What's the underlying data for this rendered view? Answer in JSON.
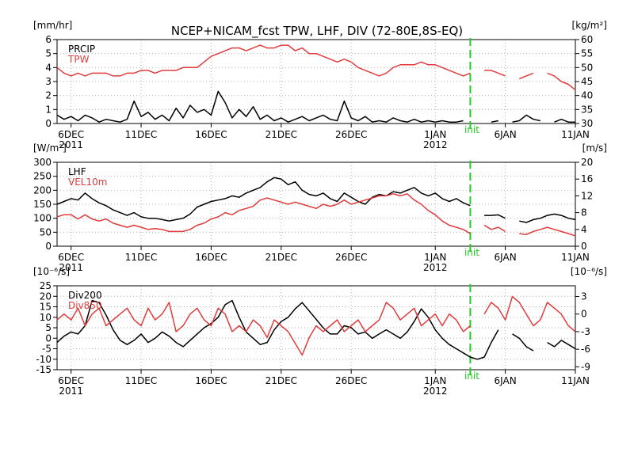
{
  "title": "NCEP+NICAM_fcst TPW, LHF, DIV (72-80E,8S-EQ)",
  "colors": {
    "black": "#000000",
    "red": "#e03c3c",
    "init": "#22cc22",
    "grid": "#b0b0b0"
  },
  "x_ticks": [
    "6DEC",
    "11DEC",
    "16DEC",
    "21DEC",
    "26DEC",
    "1JAN",
    "6JAN",
    "11JAN"
  ],
  "x_tick_days": [
    0,
    5,
    10,
    15,
    20,
    26,
    31,
    36
  ],
  "year_labels": [
    {
      "text": "2011",
      "day": 0
    },
    {
      "text": "2012",
      "day": 26
    }
  ],
  "init_label": "init",
  "chart_data": [
    {
      "type": "line",
      "panel": "precip_tpw",
      "left_unit": "[mm/hr]",
      "right_unit": "[kg/m²]",
      "left_ylim": [
        0,
        6
      ],
      "right_ylim": [
        30,
        60
      ],
      "left_ticks": [
        "0",
        "1",
        "2",
        "3",
        "4",
        "5",
        "6"
      ],
      "right_ticks": [
        "30",
        "35",
        "40",
        "45",
        "50",
        "55",
        "60"
      ],
      "xlim": [
        -1,
        36
      ],
      "init_day": 28.5,
      "grid": true,
      "series": [
        {
          "name": "PRCIP",
          "axis": "left",
          "color": "#000000",
          "x": [
            -1,
            -0.5,
            0,
            0.5,
            1,
            1.5,
            2,
            2.5,
            3,
            3.5,
            4,
            4.5,
            5,
            5.5,
            6,
            6.5,
            7,
            7.5,
            8,
            8.5,
            9,
            9.5,
            10,
            10.5,
            11,
            11.5,
            12,
            12.5,
            13,
            13.5,
            14,
            14.5,
            15,
            15.5,
            16,
            16.5,
            17,
            17.5,
            18,
            18.5,
            19,
            19.5,
            20,
            20.5,
            21,
            21.5,
            22,
            22.5,
            23,
            23.5,
            24,
            24.5,
            25,
            25.5,
            26,
            26.5,
            27,
            27.5,
            28,
            28.5,
            29,
            29.5,
            30,
            30.5,
            31,
            31.5,
            32,
            32.5,
            33,
            33.5,
            34,
            34.5,
            35,
            35.5,
            36
          ],
          "values": [
            0.6,
            0.3,
            0.5,
            0.2,
            0.6,
            0.4,
            0.1,
            0.3,
            0.2,
            0.1,
            0.3,
            1.6,
            0.5,
            0.8,
            0.3,
            0.6,
            0.2,
            1.1,
            0.4,
            1.3,
            0.8,
            1.0,
            0.6,
            2.3,
            1.5,
            0.4,
            1.0,
            0.5,
            1.2,
            0.3,
            0.6,
            0.2,
            0.4,
            0.1,
            0.3,
            0.5,
            0.2,
            0.4,
            0.6,
            0.3,
            0.2,
            1.6,
            0.4,
            0.2,
            0.5,
            0.1,
            0.2,
            0.1,
            0.4,
            0.2,
            0.1,
            0.3,
            0.1,
            0.2,
            0.1,
            0.2,
            0.1,
            0.1,
            0.2,
            null,
            0.9,
            null,
            0.1,
            0.2,
            null,
            0.1,
            0.2,
            0.6,
            0.3,
            0.2,
            null,
            0.1,
            0.3,
            0.1,
            0.1
          ]
        },
        {
          "name": "TPW",
          "axis": "right",
          "color": "#e03c3c",
          "x": [
            -1,
            -0.5,
            0,
            0.5,
            1,
            1.5,
            2,
            2.5,
            3,
            3.5,
            4,
            4.5,
            5,
            5.5,
            6,
            6.5,
            7,
            7.5,
            8,
            8.5,
            9,
            9.5,
            10,
            10.5,
            11,
            11.5,
            12,
            12.5,
            13,
            13.5,
            14,
            14.5,
            15,
            15.5,
            16,
            16.5,
            17,
            17.5,
            18,
            18.5,
            19,
            19.5,
            20,
            20.5,
            21,
            21.5,
            22,
            22.5,
            23,
            23.5,
            24,
            24.5,
            25,
            25.5,
            26,
            26.5,
            27,
            27.5,
            28,
            28.5,
            29,
            29.5,
            30,
            30.5,
            31,
            31.5,
            32,
            32.5,
            33,
            33.5,
            34,
            34.5,
            35,
            35.5,
            36
          ],
          "values": [
            50,
            48,
            47,
            48,
            47,
            48,
            48,
            48,
            47,
            47,
            48,
            48,
            49,
            49,
            48,
            49,
            49,
            49,
            50,
            50,
            50,
            52,
            54,
            55,
            56,
            57,
            57,
            56,
            57,
            58,
            57,
            57,
            58,
            58,
            56,
            57,
            55,
            55,
            54,
            53,
            52,
            53,
            52,
            50,
            49,
            48,
            47,
            48,
            50,
            51,
            51,
            51,
            52,
            51,
            51,
            50,
            49,
            48,
            47,
            48,
            null,
            49,
            49,
            48,
            47,
            null,
            46,
            47,
            48,
            null,
            48,
            47,
            45,
            44,
            42
          ]
        }
      ]
    },
    {
      "type": "line",
      "panel": "lhf_vel10m",
      "left_unit": "[W/m²]",
      "right_unit": "[m/s]",
      "left_ylim": [
        0,
        300
      ],
      "right_ylim": [
        0,
        20
      ],
      "left_ticks": [
        "0",
        "50",
        "100",
        "150",
        "200",
        "250",
        "300"
      ],
      "right_ticks": [
        "0",
        "4",
        "8",
        "12",
        "16",
        "20"
      ],
      "xlim": [
        -1,
        36
      ],
      "init_day": 28.5,
      "grid": true,
      "series": [
        {
          "name": "LHF",
          "axis": "left",
          "color": "#000000",
          "x": [
            -1,
            -0.5,
            0,
            0.5,
            1,
            1.5,
            2,
            2.5,
            3,
            3.5,
            4,
            4.5,
            5,
            5.5,
            6,
            6.5,
            7,
            7.5,
            8,
            8.5,
            9,
            9.5,
            10,
            10.5,
            11,
            11.5,
            12,
            12.5,
            13,
            13.5,
            14,
            14.5,
            15,
            15.5,
            16,
            16.5,
            17,
            17.5,
            18,
            18.5,
            19,
            19.5,
            20,
            20.5,
            21,
            21.5,
            22,
            22.5,
            23,
            23.5,
            24,
            24.5,
            25,
            25.5,
            26,
            26.5,
            27,
            27.5,
            28,
            28.5,
            29,
            29.5,
            30,
            30.5,
            31,
            31.5,
            32,
            32.5,
            33,
            33.5,
            34,
            34.5,
            35,
            35.5,
            36
          ],
          "values": [
            150,
            160,
            170,
            165,
            190,
            170,
            155,
            145,
            130,
            120,
            110,
            120,
            105,
            100,
            100,
            95,
            90,
            95,
            100,
            115,
            140,
            150,
            160,
            165,
            170,
            180,
            175,
            190,
            200,
            210,
            230,
            245,
            240,
            220,
            230,
            200,
            185,
            180,
            190,
            170,
            160,
            190,
            175,
            160,
            150,
            175,
            185,
            180,
            195,
            190,
            200,
            210,
            190,
            180,
            190,
            170,
            160,
            170,
            155,
            145,
            null,
            110,
            110,
            112,
            100,
            null,
            90,
            85,
            95,
            100,
            110,
            115,
            110,
            100,
            95
          ]
        },
        {
          "name": "VEL10m",
          "axis": "right",
          "color": "#e03c3c",
          "x": [
            -1,
            -0.5,
            0,
            0.5,
            1,
            1.5,
            2,
            2.5,
            3,
            3.5,
            4,
            4.5,
            5,
            5.5,
            6,
            6.5,
            7,
            7.5,
            8,
            8.5,
            9,
            9.5,
            10,
            10.5,
            11,
            11.5,
            12,
            12.5,
            13,
            13.5,
            14,
            14.5,
            15,
            15.5,
            16,
            16.5,
            17,
            17.5,
            18,
            18.5,
            19,
            19.5,
            20,
            20.5,
            21,
            21.5,
            22,
            22.5,
            23,
            23.5,
            24,
            24.5,
            25,
            25.5,
            26,
            26.5,
            27,
            27.5,
            28,
            28.5,
            29,
            29.5,
            30,
            30.5,
            31,
            31.5,
            32,
            32.5,
            33,
            33.5,
            34,
            34.5,
            35,
            35.5,
            36
          ],
          "values": [
            7,
            7.5,
            7.5,
            6.5,
            7.5,
            6.5,
            6,
            6.5,
            5.5,
            5,
            4.5,
            5,
            4.5,
            4,
            4.2,
            4,
            3.5,
            3.5,
            3.5,
            4,
            5,
            5.5,
            6.5,
            7,
            8,
            7.5,
            8.5,
            9,
            9.5,
            11,
            11.5,
            11,
            10.5,
            10,
            10.5,
            10,
            9.5,
            9,
            10,
            9.5,
            10,
            11,
            10,
            10.5,
            11,
            11.5,
            12,
            12,
            12.5,
            12,
            12.5,
            11,
            10,
            8.5,
            7.5,
            6,
            5,
            4.5,
            4,
            3,
            null,
            5,
            4,
            4.5,
            3.5,
            null,
            3,
            2.8,
            3.5,
            4,
            4.5,
            4,
            3.5,
            3,
            2.5
          ]
        }
      ]
    },
    {
      "type": "line",
      "panel": "div200_div850",
      "left_unit": "[10⁻⁶/s]",
      "right_unit": "[10⁻⁶/s]",
      "left_ylim": [
        -15,
        25
      ],
      "right_ylim": [
        -9.5,
        4.833
      ],
      "left_ticks": [
        "-15",
        "-10",
        "-5",
        "0",
        "5",
        "10",
        "15",
        "20",
        "25"
      ],
      "right_ticks": [
        "-9",
        "-6",
        "-3",
        "0",
        "3"
      ],
      "xlim": [
        -1,
        36
      ],
      "init_day": 28.5,
      "grid": true,
      "series": [
        {
          "name": "Div200",
          "axis": "left",
          "color": "#000000",
          "x": [
            -1,
            -0.5,
            0,
            0.5,
            1,
            1.5,
            2,
            2.5,
            3,
            3.5,
            4,
            4.5,
            5,
            5.5,
            6,
            6.5,
            7,
            7.5,
            8,
            8.5,
            9,
            9.5,
            10,
            10.5,
            11,
            11.5,
            12,
            12.5,
            13,
            13.5,
            14,
            14.5,
            15,
            15.5,
            16,
            16.5,
            17,
            17.5,
            18,
            18.5,
            19,
            19.5,
            20,
            20.5,
            21,
            21.5,
            22,
            22.5,
            23,
            23.5,
            24,
            24.5,
            25,
            25.5,
            26,
            26.5,
            27,
            27.5,
            28,
            28.5,
            29,
            29.5,
            30,
            30.5,
            31,
            31.5,
            32,
            32.5,
            33,
            33.5,
            34,
            34.5,
            35,
            35.5,
            36
          ],
          "values": [
            -2,
            1,
            3,
            2,
            6,
            18,
            17,
            11,
            4,
            -1,
            -3,
            -1,
            2,
            -2,
            0,
            3,
            1,
            -2,
            -4,
            -1,
            2,
            5,
            7,
            10,
            16,
            18,
            10,
            3,
            0,
            -3,
            -2,
            4,
            8,
            10,
            14,
            17,
            13,
            9,
            5,
            2,
            2,
            6,
            5,
            2,
            3,
            0,
            2,
            4,
            2,
            0,
            3,
            8,
            14,
            10,
            4,
            0,
            -3,
            -5,
            -7,
            -9,
            -10,
            -9,
            -2,
            4,
            null,
            2,
            0,
            -4,
            -6,
            null,
            -2,
            -4,
            -1,
            -3,
            -5
          ]
        },
        {
          "name": "Div850",
          "axis": "right",
          "color": "#e03c3c",
          "x": [
            -1,
            -0.5,
            0,
            0.5,
            1,
            1.5,
            2,
            2.5,
            3,
            3.5,
            4,
            4.5,
            5,
            5.5,
            6,
            6.5,
            7,
            7.5,
            8,
            8.5,
            9,
            9.5,
            10,
            10.5,
            11,
            11.5,
            12,
            12.5,
            13,
            13.5,
            14,
            14.5,
            15,
            15.5,
            16,
            16.5,
            17,
            17.5,
            18,
            18.5,
            19,
            19.5,
            20,
            20.5,
            21,
            21.5,
            22,
            22.5,
            23,
            23.5,
            24,
            24.5,
            25,
            25.5,
            26,
            26.5,
            27,
            27.5,
            28,
            28.5,
            29,
            29.5,
            30,
            30.5,
            31,
            31.5,
            32,
            32.5,
            33,
            33.5,
            34,
            34.5,
            35,
            35.5,
            36
          ],
          "values": [
            -1,
            0,
            -1,
            1,
            -2,
            0,
            1,
            -2,
            -1,
            0,
            1,
            -1,
            -2,
            1,
            -1,
            0,
            2,
            -3,
            -2,
            0,
            1,
            -1,
            -2,
            1,
            0,
            -3,
            -2,
            -3,
            -1,
            -2,
            -4,
            -1,
            -2,
            -3,
            -5,
            -7,
            -4,
            -2,
            -3,
            -2,
            -1,
            -3,
            -2,
            -1,
            -3,
            -2,
            -1,
            2,
            1,
            -1,
            0,
            1,
            -2,
            -1,
            0,
            -2,
            0,
            -1,
            -3,
            -2,
            null,
            0,
            2,
            1,
            -1,
            3,
            2,
            0,
            -2,
            -1,
            2,
            1,
            0,
            -2,
            -3
          ]
        }
      ]
    }
  ]
}
